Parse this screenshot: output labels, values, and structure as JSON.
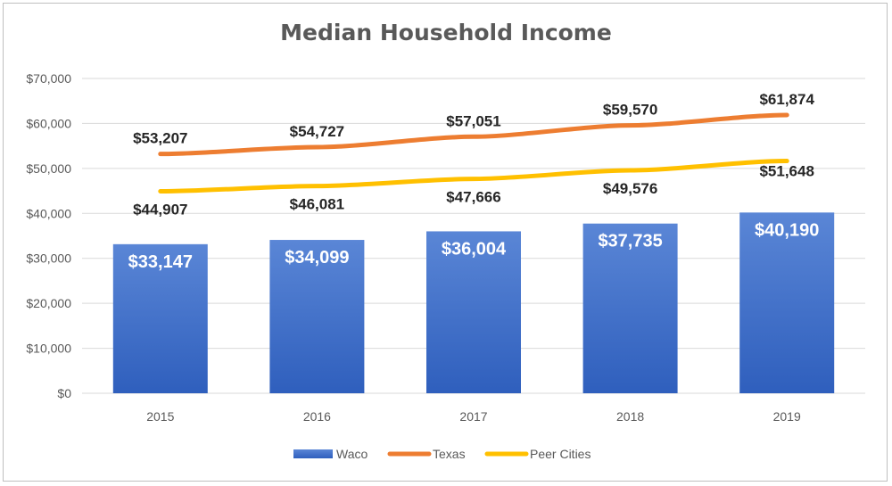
{
  "chart_data": {
    "type": "bar",
    "title": "Median Household Income",
    "xlabel": "",
    "ylabel": "",
    "categories": [
      "2015",
      "2016",
      "2017",
      "2018",
      "2019"
    ],
    "ylim": [
      0,
      70000
    ],
    "yticks": [
      0,
      10000,
      20000,
      30000,
      40000,
      50000,
      60000,
      70000
    ],
    "ytick_labels": [
      "$0",
      "$10,000",
      "$20,000",
      "$30,000",
      "$40,000",
      "$50,000",
      "$60,000",
      "$70,000"
    ],
    "grid": true,
    "legend_position": "bottom",
    "series": [
      {
        "name": "Waco",
        "kind": "bar",
        "color": "#4472c4",
        "values": [
          33147,
          34099,
          36004,
          37735,
          40190
        ],
        "labels": [
          "$33,147",
          "$34,099",
          "$36,004",
          "$37,735",
          "$40,190"
        ]
      },
      {
        "name": "Texas",
        "kind": "line",
        "color": "#ed7d31",
        "values": [
          53207,
          54727,
          57051,
          59570,
          61874
        ],
        "labels": [
          "$53,207",
          "$54,727",
          "$57,051",
          "$59,570",
          "$61,874"
        ]
      },
      {
        "name": "Peer Cities",
        "kind": "line",
        "color": "#ffc000",
        "values": [
          44907,
          46081,
          47666,
          49576,
          51648
        ],
        "labels": [
          "$44,907",
          "$46,081",
          "$47,666",
          "$49,576",
          "$51,648"
        ]
      }
    ]
  }
}
